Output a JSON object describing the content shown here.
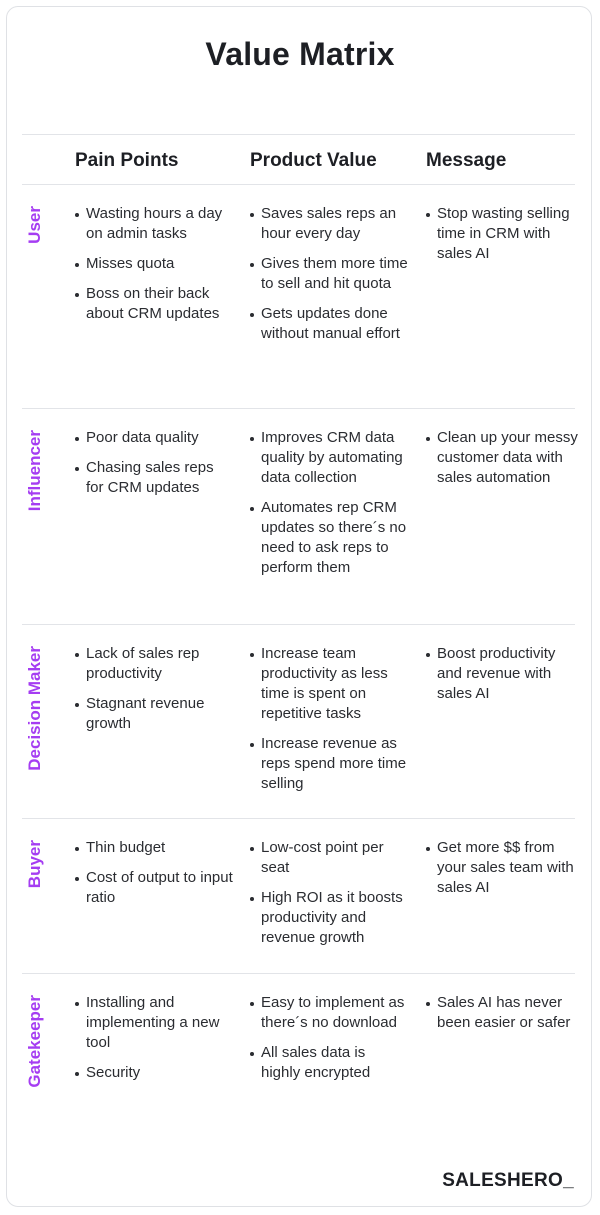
{
  "title": "Value Matrix",
  "headers": [
    "Pain Points",
    "Product Value",
    "Message"
  ],
  "accent_color": "#a53df2",
  "rows": [
    {
      "label": "User",
      "pain": [
        "Wasting hours a day on admin tasks",
        "Misses quota",
        "Boss on their back about CRM updates"
      ],
      "value": [
        "Saves sales reps an hour every day",
        "Gives them more time to sell and hit quota",
        "Gets updates done without manual effort"
      ],
      "message": [
        "Stop wasting selling time in CRM with sales AI"
      ]
    },
    {
      "label": "Influencer",
      "pain": [
        "Poor data quality",
        "Chasing sales reps for CRM updates"
      ],
      "value": [
        "Improves CRM data quality by automating data collection",
        "Automates rep CRM updates so there´s no need to ask reps to perform them"
      ],
      "message": [
        "Clean up your messy customer data with sales automation"
      ]
    },
    {
      "label": "Decision Maker",
      "pain": [
        "Lack of sales rep productivity",
        "Stagnant revenue growth"
      ],
      "value": [
        "Increase team productivity as less time is spent on repetitive tasks",
        "Increase revenue as reps spend more time selling"
      ],
      "message": [
        "Boost productivity and revenue with sales AI"
      ]
    },
    {
      "label": "Buyer",
      "pain": [
        "Thin budget",
        "Cost of output to input ratio"
      ],
      "value": [
        "Low-cost point per seat",
        "High ROI as it boosts productivity and revenue growth"
      ],
      "message": [
        "Get more $$ from your sales team with sales AI"
      ]
    },
    {
      "label": "Gatekeeper",
      "pain": [
        "Installing and implementing a new tool",
        "Security"
      ],
      "value": [
        "Easy to implement as there´s no download",
        "All sales data is highly encrypted"
      ],
      "message": [
        "Sales AI has never been easier or safer"
      ]
    }
  ],
  "logo": "SALESHERO_"
}
